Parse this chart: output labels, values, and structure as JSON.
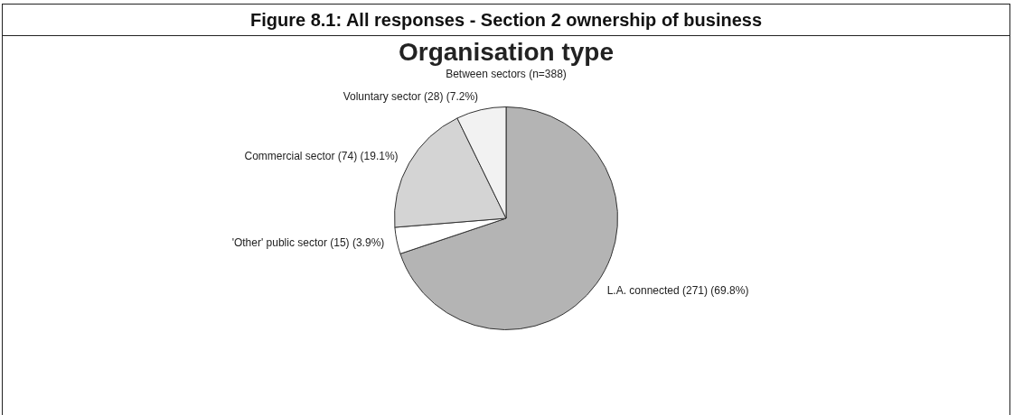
{
  "chart_data": {
    "type": "pie",
    "title": "Organisation type",
    "subtitle": "Between sectors (n=388)",
    "annotations": [
      "Figure 8.1: All responses - Section 2 ownership of business"
    ],
    "categories": [
      "L.A. connected (271) (69.8%)",
      "'Other' public sector (15) (3.9%)",
      "Commercial sector (74) (19.1%)",
      "Voluntary sector (28) (7.2%)"
    ],
    "values": [
      271,
      15,
      74,
      28
    ],
    "colors": [
      "#b4b4b4",
      "#ffffff",
      "#d4d4d4",
      "#f2f2f2"
    ],
    "legend": false
  }
}
